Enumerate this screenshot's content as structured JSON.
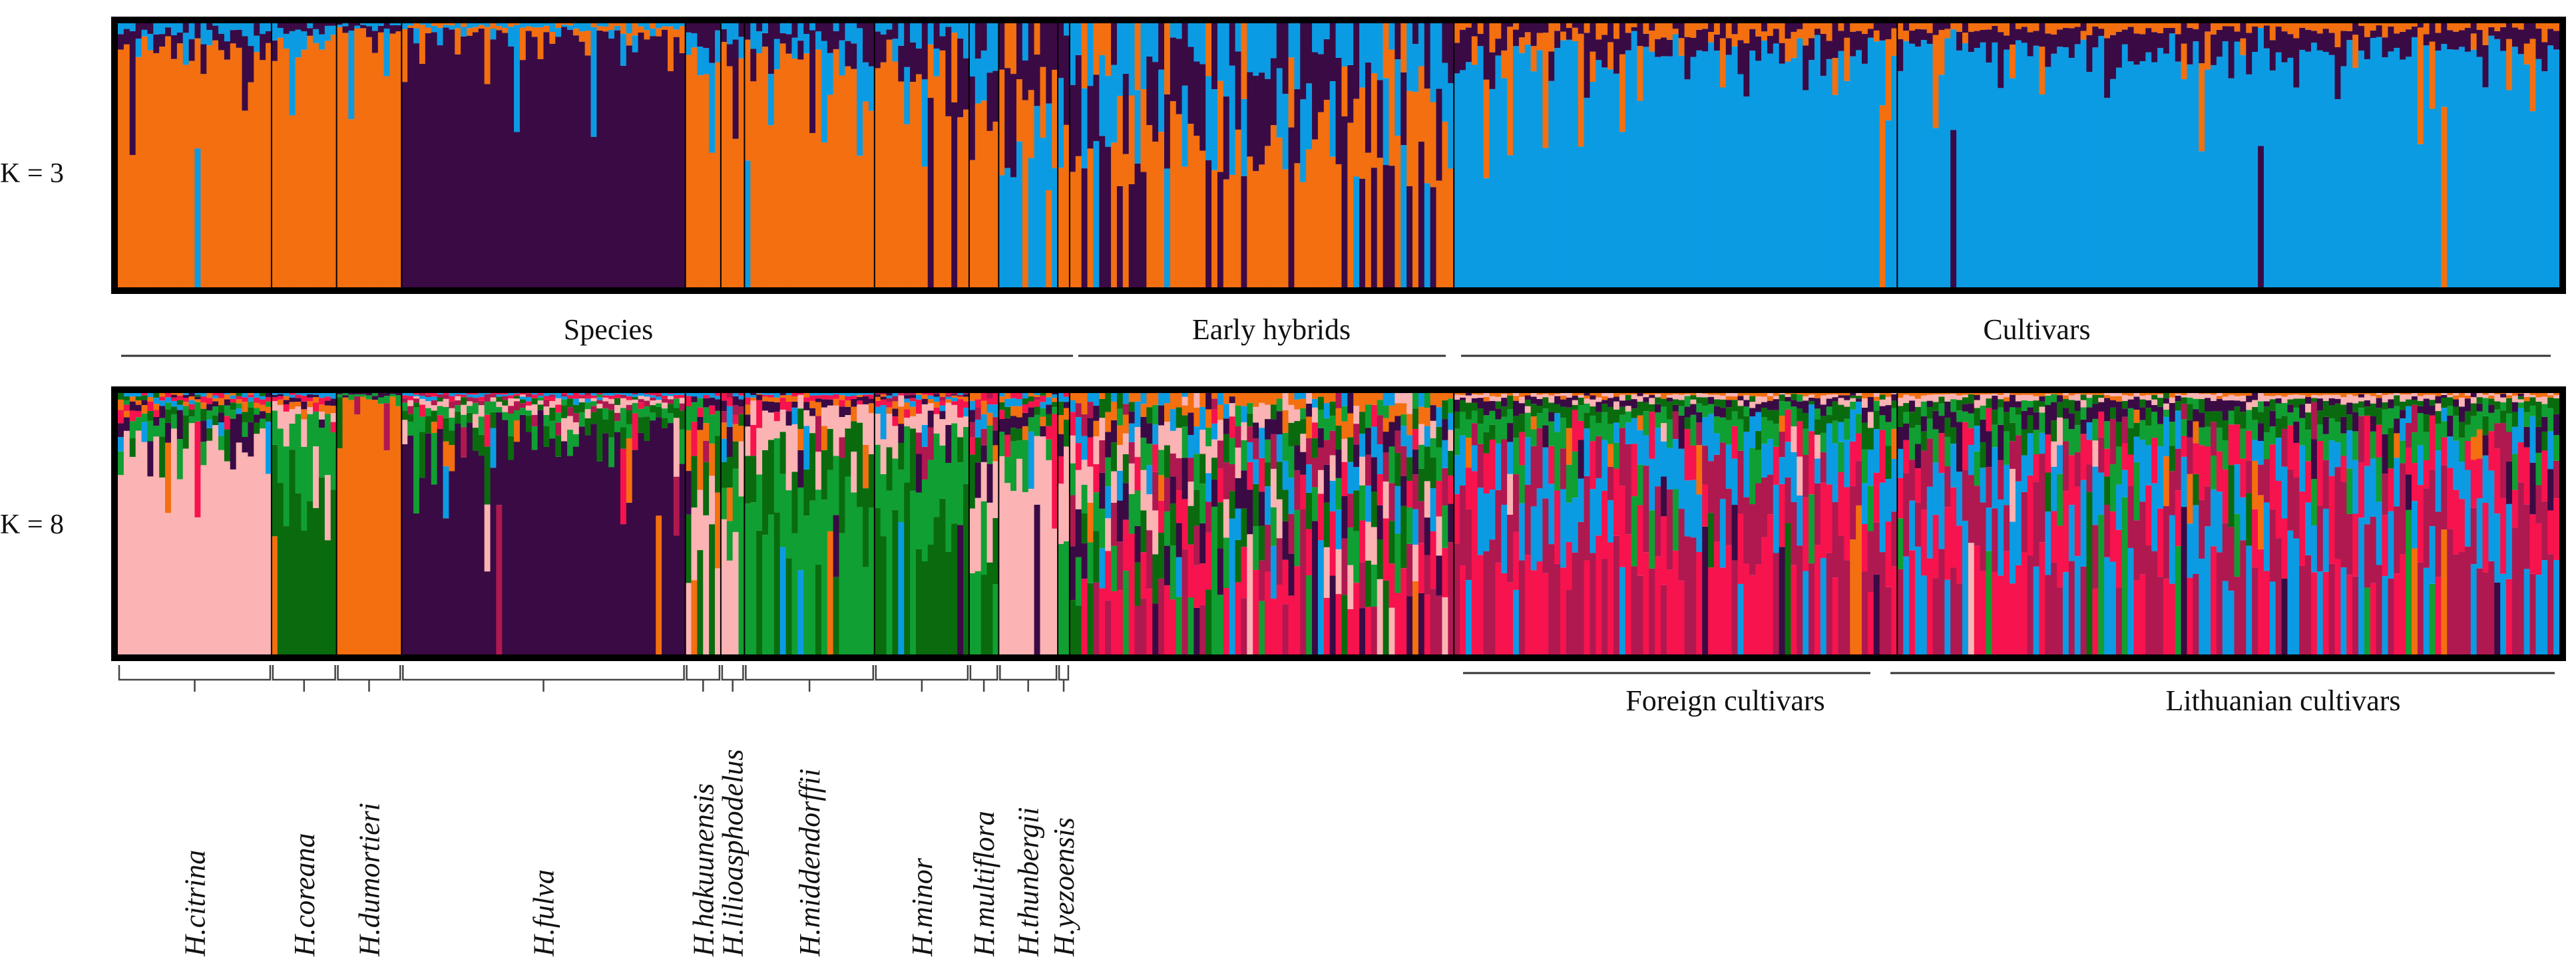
{
  "figure": {
    "panels": [
      {
        "id": "k3",
        "k_label": "K = 3"
      },
      {
        "id": "k8",
        "k_label": "K = 8"
      }
    ],
    "top_groups": [
      "Species",
      "Early hybrids",
      "Cultivars"
    ],
    "cultivar_subgroups": [
      "Foreign cultivars",
      "Lithuanian cultivars"
    ],
    "species": [
      "H.citrina",
      "H.coreana",
      "H.dumortieri",
      "H.fulva",
      "H.hakuunensis",
      "H.lilioasphodelus",
      "H.middendorffii",
      "H.minor",
      "H.multiflora",
      "H.thunbergii",
      "H.yezoensis"
    ]
  },
  "chart_data": {
    "type": "stacked-bar (STRUCTURE admixture plot)",
    "y_range": [
      0,
      1
    ],
    "y_meaning": "ancestry proportion per individual",
    "individuals_per_group": {
      "H.citrina": 26,
      "H.coreana": 11,
      "H.dumortieri": 11,
      "H.fulva": 48,
      "H.hakuunensis": 6,
      "H.lilioasphodelus": 4,
      "H.middendorffii": 22,
      "H.minor": 16,
      "H.multiflora": 5,
      "H.thunbergii": 10,
      "H.yezoensis": 2,
      "Early hybrids": 65,
      "Foreign cultivars": 75,
      "Lithuanian cultivars": 112
    },
    "panels": [
      {
        "k": 3,
        "label": "K = 3",
        "cluster_colors": [
          "#f36f0f",
          "#3a0a45",
          "#0b9be3"
        ],
        "mean_proportions_by_group": {
          "H.citrina": [
            0.9,
            0.06,
            0.04
          ],
          "H.coreana": [
            0.93,
            0.02,
            0.05
          ],
          "H.dumortieri": [
            0.97,
            0.02,
            0.01
          ],
          "H.fulva": [
            0.02,
            0.96,
            0.02
          ],
          "H.hakuunensis": [
            0.88,
            0.05,
            0.07
          ],
          "H.lilioasphodelus": [
            0.85,
            0.07,
            0.08
          ],
          "H.middendorffii": [
            0.83,
            0.07,
            0.1
          ],
          "H.minor": [
            0.8,
            0.12,
            0.08
          ],
          "H.multiflora": [
            0.55,
            0.25,
            0.2
          ],
          "H.thunbergii": [
            0.3,
            0.2,
            0.5
          ],
          "H.yezoensis": [
            0.6,
            0.3,
            0.1
          ],
          "Early hybrids": [
            0.45,
            0.32,
            0.23
          ],
          "Foreign cultivars": [
            0.05,
            0.07,
            0.88
          ],
          "Lithuanian cultivars": [
            0.03,
            0.08,
            0.89
          ]
        }
      },
      {
        "k": 8,
        "label": "K = 8",
        "cluster_colors": [
          "#fbb3b3",
          "#0a6b0e",
          "#f36f0f",
          "#3a0a45",
          "#109f32",
          "#b01850",
          "#f7134d",
          "#0b9be3"
        ],
        "mean_proportions_by_group": {
          "H.citrina": [
            0.82,
            0.03,
            0.02,
            0.04,
            0.05,
            0.0,
            0.02,
            0.02
          ],
          "H.coreana": [
            0.05,
            0.68,
            0.02,
            0.02,
            0.2,
            0.0,
            0.02,
            0.01
          ],
          "H.dumortieri": [
            0.0,
            0.0,
            0.97,
            0.01,
            0.02,
            0.0,
            0.0,
            0.0
          ],
          "H.fulva": [
            0.02,
            0.04,
            0.0,
            0.86,
            0.04,
            0.02,
            0.01,
            0.01
          ],
          "H.hakuunensis": [
            0.25,
            0.3,
            0.25,
            0.05,
            0.1,
            0.0,
            0.03,
            0.02
          ],
          "H.lilioasphodelus": [
            0.45,
            0.1,
            0.1,
            0.05,
            0.2,
            0.05,
            0.03,
            0.02
          ],
          "H.middendorffii": [
            0.12,
            0.25,
            0.02,
            0.03,
            0.55,
            0.0,
            0.02,
            0.01
          ],
          "H.minor": [
            0.08,
            0.45,
            0.02,
            0.02,
            0.38,
            0.01,
            0.02,
            0.02
          ],
          "H.multiflora": [
            0.2,
            0.25,
            0.05,
            0.1,
            0.25,
            0.05,
            0.05,
            0.05
          ],
          "H.thunbergii": [
            0.75,
            0.03,
            0.03,
            0.03,
            0.1,
            0.0,
            0.04,
            0.02
          ],
          "H.yezoensis": [
            0.4,
            0.1,
            0.05,
            0.05,
            0.3,
            0.0,
            0.05,
            0.05
          ],
          "Early hybrids": [
            0.12,
            0.12,
            0.06,
            0.12,
            0.14,
            0.14,
            0.2,
            0.1
          ],
          "Foreign cultivars": [
            0.02,
            0.05,
            0.01,
            0.03,
            0.08,
            0.3,
            0.3,
            0.21
          ],
          "Lithuanian cultivars": [
            0.02,
            0.05,
            0.01,
            0.05,
            0.08,
            0.3,
            0.25,
            0.24
          ]
        }
      }
    ]
  }
}
